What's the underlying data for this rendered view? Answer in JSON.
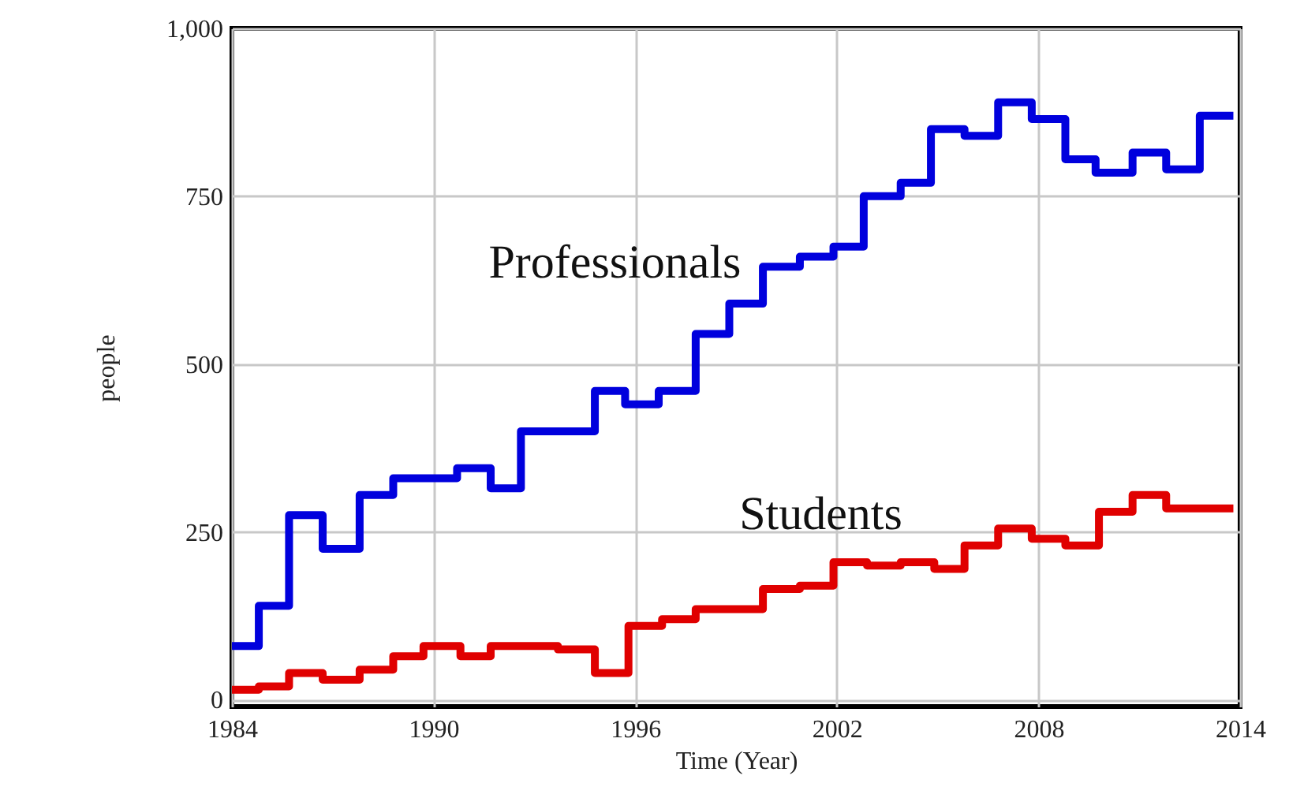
{
  "chart_data": {
    "type": "step",
    "xlabel": "Time (Year)",
    "ylabel": "people",
    "xlim": [
      1984,
      2014
    ],
    "xticks": [
      1984,
      1990,
      1996,
      2002,
      2008,
      2014
    ],
    "ylim": [
      -10,
      1000
    ],
    "yticks": [
      0,
      250,
      500,
      750,
      {
        "value": 1000,
        "label": "1,000"
      }
    ],
    "grid": true,
    "line_style": "solid",
    "marker": "none",
    "series": [
      {
        "name": "Professionals",
        "color": "#0000dd",
        "x": [
          1984,
          1984.8,
          1985.7,
          1986.7,
          1987.8,
          1988.8,
          1990.7,
          1991.7,
          1992.6,
          1994.8,
          1995.7,
          1996.7,
          1997.8,
          1998.8,
          1999.8,
          2000.9,
          2001.9,
          2002.8,
          2003.9,
          2004.8,
          2005.8,
          2006.8,
          2007.8,
          2008.8,
          2009.7,
          2010.8,
          2011.8,
          2012.8,
          2013.8
        ],
        "values": [
          80,
          140,
          275,
          225,
          305,
          330,
          345,
          315,
          400,
          460,
          440,
          460,
          545,
          590,
          645,
          660,
          675,
          750,
          770,
          850,
          840,
          890,
          865,
          805,
          785,
          815,
          790,
          870,
          870
        ]
      },
      {
        "name": "Students",
        "color": "#e00000",
        "x": [
          1984,
          1984.8,
          1985.7,
          1986.7,
          1987.8,
          1988.8,
          1989.7,
          1990.8,
          1991.7,
          1993.7,
          1994.8,
          1995.8,
          1996.8,
          1997.8,
          1999.8,
          2000.9,
          2001.9,
          2002.9,
          2003.9,
          2004.9,
          2005.8,
          2006.8,
          2007.8,
          2008.8,
          2009.8,
          2010.8,
          2011.8,
          2013.8
        ],
        "values": [
          15,
          20,
          40,
          30,
          45,
          65,
          80,
          65,
          80,
          75,
          40,
          110,
          120,
          135,
          165,
          170,
          205,
          200,
          205,
          195,
          230,
          255,
          240,
          230,
          280,
          305,
          285,
          285
        ]
      }
    ]
  }
}
